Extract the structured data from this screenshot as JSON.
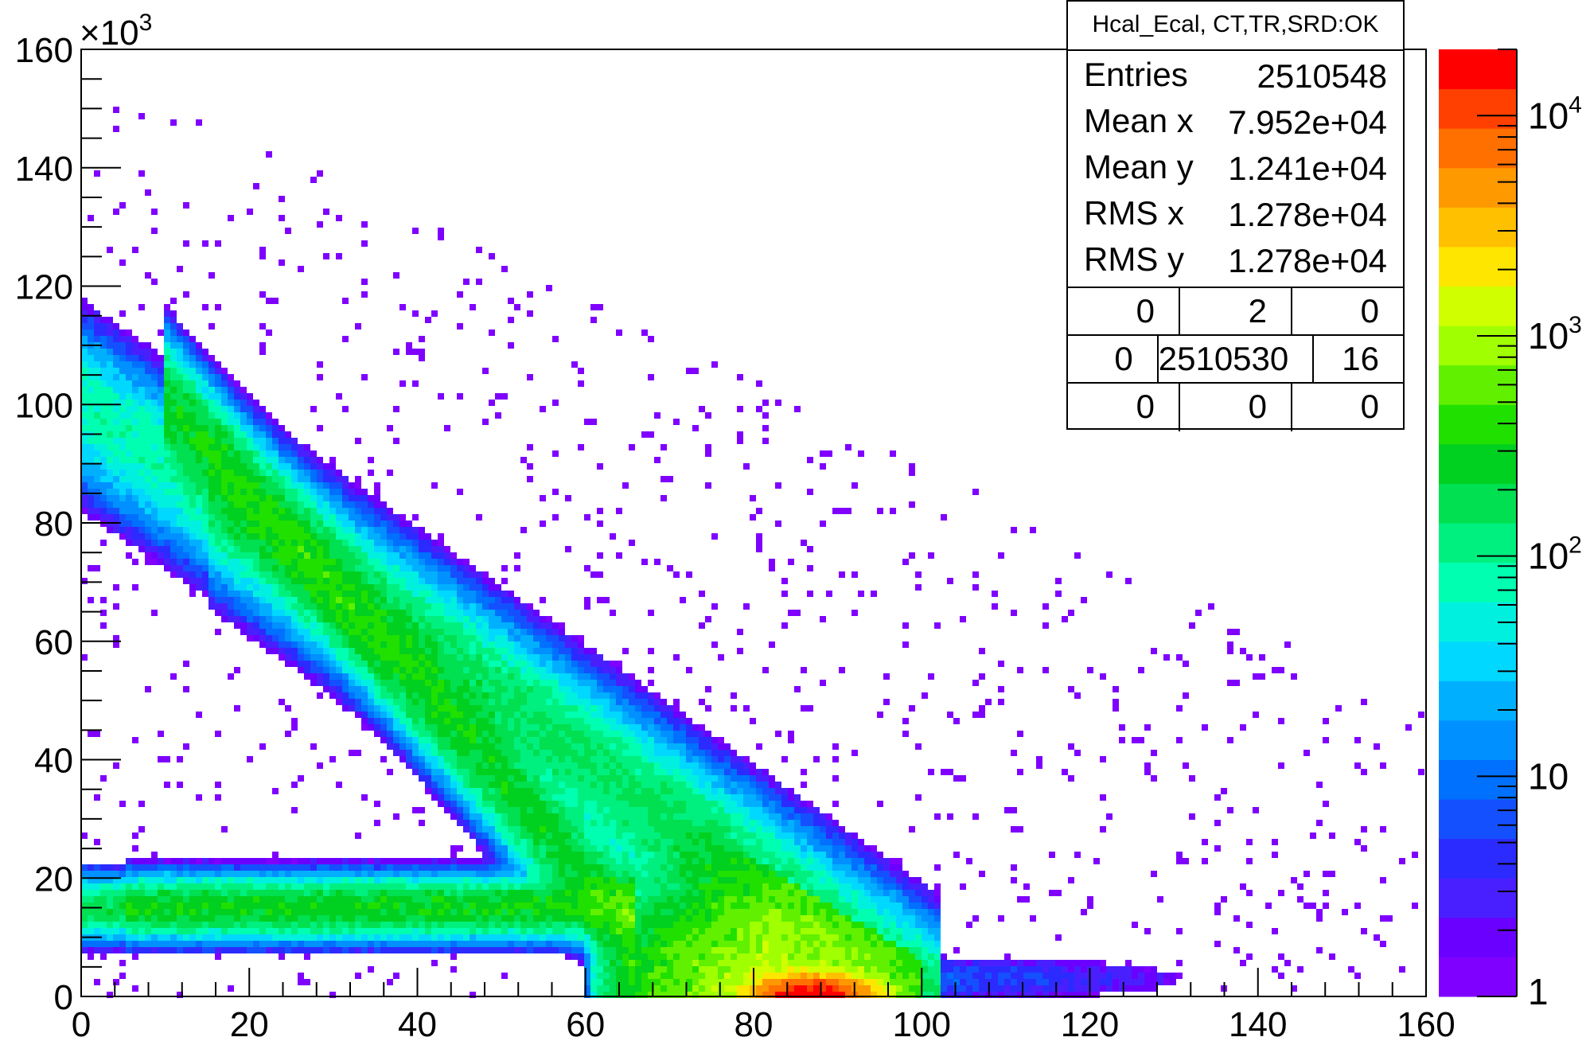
{
  "chart_data": {
    "type": "heatmap",
    "title": "Hcal_Ecal, CT,TR,SRD:OK",
    "xlabel": "",
    "ylabel": "",
    "xlim": [
      0,
      160
    ],
    "ylim": [
      0,
      160000
    ],
    "x_ticks": [
      "0",
      "20",
      "40",
      "60",
      "80",
      "100",
      "120",
      "140",
      "160"
    ],
    "y_ticks": [
      "0",
      "20",
      "40",
      "60",
      "80",
      "100",
      "120",
      "140",
      "160"
    ],
    "y_multiplier": "×10",
    "y_multiplier_exp": "3",
    "z_scale": "log",
    "z_range": [
      1,
      20000
    ],
    "z_ticks": [
      {
        "base": "1",
        "exp": ""
      },
      {
        "base": "10",
        "exp": ""
      },
      {
        "base": "10",
        "exp": "2"
      },
      {
        "base": "10",
        "exp": "3"
      },
      {
        "base": "10",
        "exp": "4"
      }
    ],
    "palette": [
      "#7f00ff",
      "#6a00ff",
      "#4a1fff",
      "#2b2bff",
      "#1550ff",
      "#0070ff",
      "#0090ff",
      "#00b0ff",
      "#00d8ff",
      "#00f0e0",
      "#00ffb0",
      "#00f080",
      "#00e050",
      "#00d020",
      "#20e000",
      "#60f000",
      "#a0ff00",
      "#d0ff00",
      "#ffe600",
      "#ffc000",
      "#ff9900",
      "#ff7000",
      "#ff4000",
      "#ff0000"
    ],
    "bands": [
      {
        "region": "low-y horizontal band",
        "x": [
          2,
          62
        ],
        "y": [
          15000,
          15000
        ],
        "peak_count": 300
      },
      {
        "region": "upper diagonal band",
        "x": [
          2,
          100
        ],
        "y": [
          100000,
          0
        ],
        "peak_count": 200
      },
      {
        "region": "inner diagonal band",
        "x": [
          20,
          62
        ],
        "y": [
          85000,
          17000
        ],
        "peak_count": 400
      },
      {
        "region": "core",
        "x": [
          62,
          98
        ],
        "y": [
          17000,
          0
        ],
        "peak_count": 3000
      },
      {
        "region": "peak",
        "x": [
          88,
          88
        ],
        "y": [
          0,
          0
        ],
        "peak_count": 20000
      },
      {
        "region": "tail",
        "x": [
          100,
          128
        ],
        "y": [
          3000,
          3000
        ],
        "peak_count": 8
      }
    ]
  },
  "stats": {
    "title": "Hcal_Ecal, CT,TR,SRD:OK",
    "rows": [
      {
        "key": "Entries",
        "value": "2510548"
      },
      {
        "key": "Mean x",
        "value": "7.952e+04"
      },
      {
        "key": "Mean y",
        "value": "1.241e+04"
      },
      {
        "key": "RMS x",
        "value": "1.278e+04"
      },
      {
        "key": "RMS y",
        "value": "1.278e+04"
      }
    ],
    "grid_row1": [
      "0",
      "2",
      "0"
    ],
    "grid_row2": [
      "0",
      "2510530",
      "16"
    ],
    "grid_row3": [
      "0",
      "0",
      "0"
    ]
  }
}
